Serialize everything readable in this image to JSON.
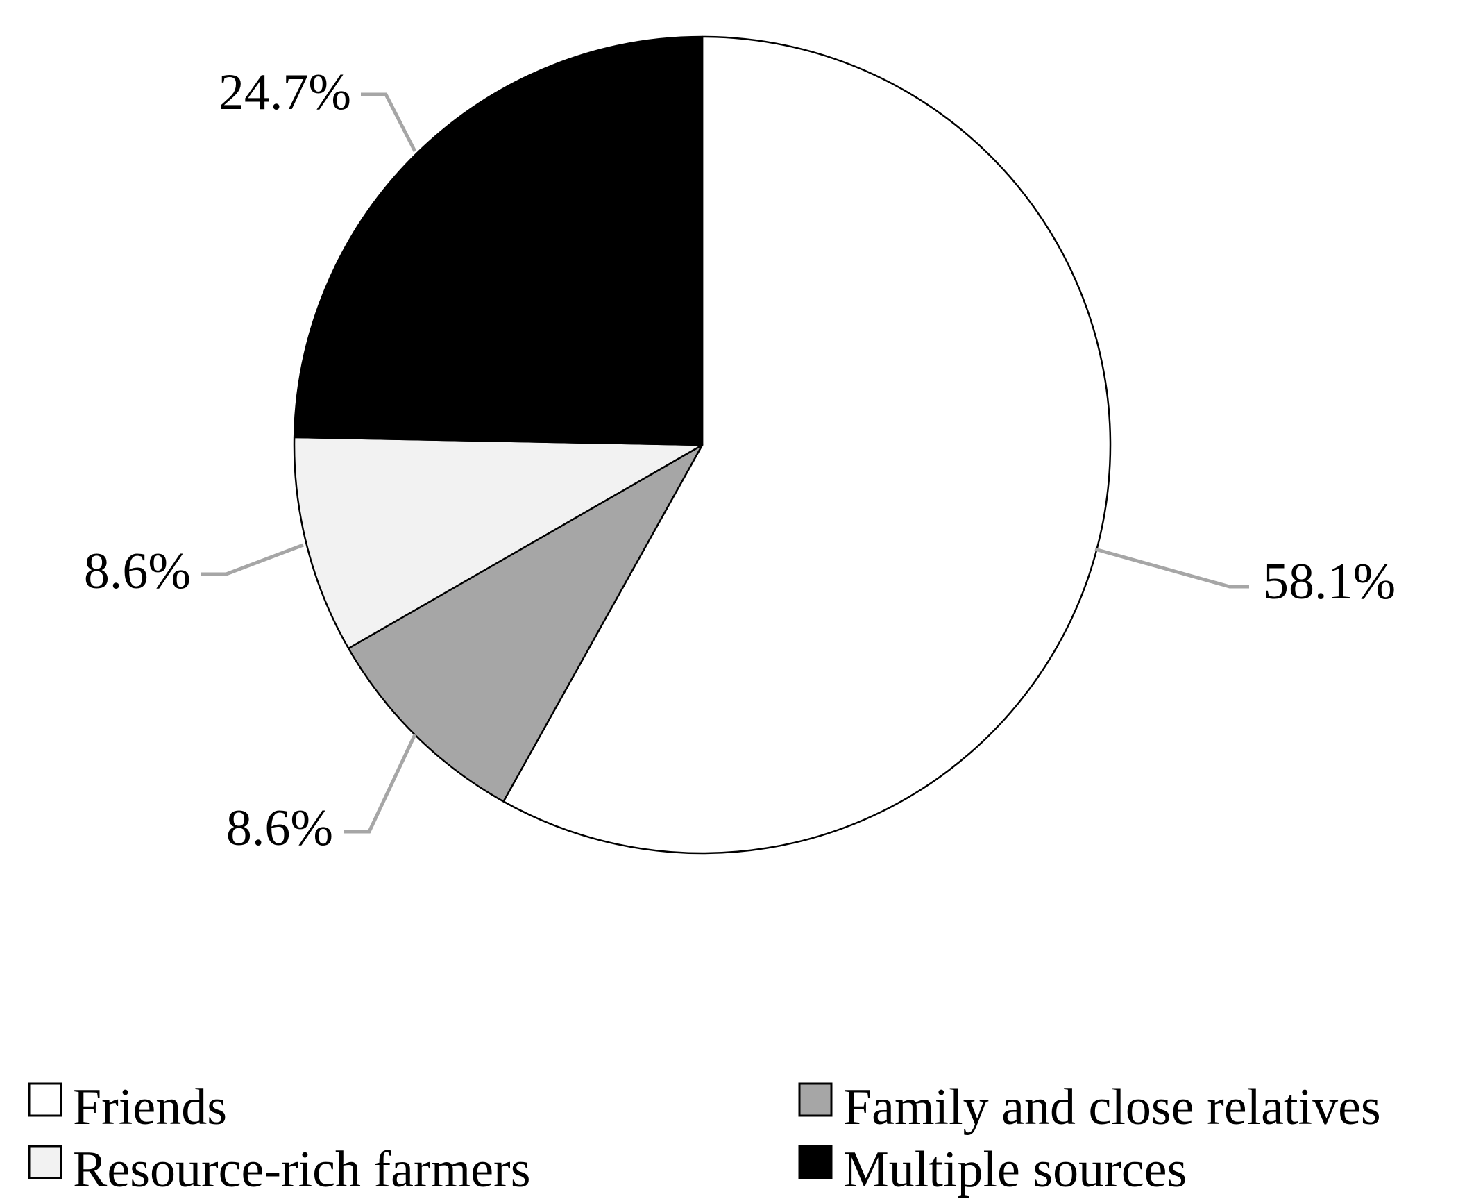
{
  "chart_data": {
    "type": "pie",
    "title": "",
    "start_angle_deg": 0,
    "direction": "clockwise",
    "slices": [
      {
        "label": "Friends",
        "value": 58.1,
        "display": "58.1%",
        "color": "#ffffff"
      },
      {
        "label": "Family and close relatives",
        "value": 8.6,
        "display": "8.6%",
        "color": "#a6a6a6"
      },
      {
        "label": "Resource-rich farmers",
        "value": 8.6,
        "display": "8.6%",
        "color": "#f2f2f2"
      },
      {
        "label": "Multiple sources",
        "value": 24.7,
        "display": "24.7%",
        "color": "#000000"
      }
    ],
    "legend": {
      "placement": "bottom",
      "items": [
        {
          "label": "Friends",
          "color": "#ffffff"
        },
        {
          "label": "Family and close relatives",
          "color": "#a6a6a6"
        },
        {
          "label": "Resource-rich farmers",
          "color": "#f2f2f2"
        },
        {
          "label": "Multiple sources",
          "color": "#000000"
        }
      ]
    },
    "slice_border_color": "#000000",
    "leader_line_color": "#a6a6a6"
  }
}
